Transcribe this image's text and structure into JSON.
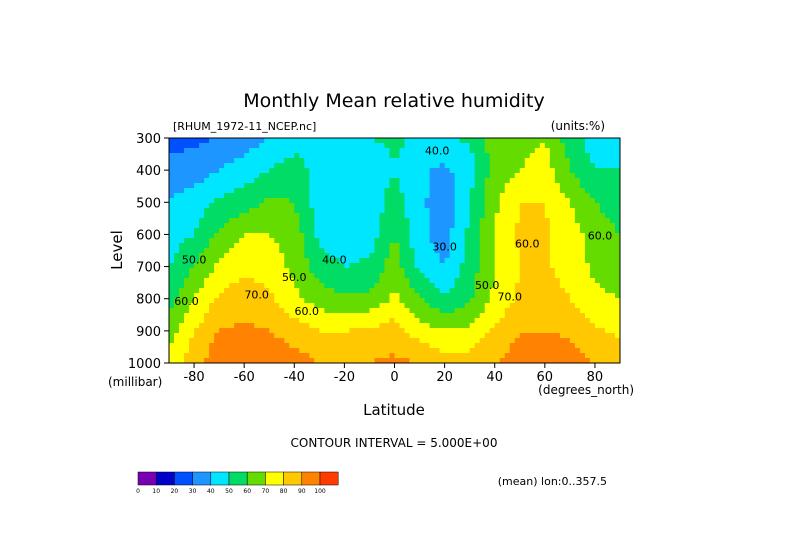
{
  "chart_data": {
    "type": "heatmap",
    "title": "Monthly Mean relative humidity",
    "file_label": "[RHUM_1972-11_NCEP.nc]",
    "units_label": "(units:%)",
    "ylabel": "Level",
    "ylabel_units": "(millibar)",
    "xlabel": "Latitude",
    "xlabel_units": "(degrees_north)",
    "x_ticks": [
      -80,
      -60,
      -40,
      -20,
      0,
      20,
      40,
      60,
      80
    ],
    "x_tick_labels": [
      "-80",
      "-60",
      "-40",
      "-20",
      "0",
      "20",
      "40",
      "60",
      "80"
    ],
    "xlim": [
      -90,
      90
    ],
    "y_ticks": [
      300,
      400,
      500,
      600,
      700,
      800,
      900,
      1000
    ],
    "y_tick_labels": [
      "300",
      "400",
      "500",
      "600",
      "700",
      "800",
      "900",
      "1000"
    ],
    "ylim": [
      1000,
      300
    ],
    "contour_interval": "CONTOUR INTERVAL = 5.000E+00",
    "footnote": "(mean) lon:0..357.5",
    "colorbar": {
      "levels": [
        0,
        10,
        20,
        30,
        40,
        50,
        60,
        70,
        80,
        90,
        100
      ],
      "labels": [
        "0",
        "10",
        "20",
        "30",
        "40",
        "50",
        "60",
        "70",
        "80",
        "90",
        "100"
      ],
      "colors": [
        "#7a00b4",
        "#0000c8",
        "#0050ff",
        "#1e96ff",
        "#00e6ff",
        "#00dc64",
        "#64dc00",
        "#ffff00",
        "#ffc800",
        "#ff8200",
        "#ff3c00",
        "#ff0000"
      ]
    },
    "contour_labels": [
      {
        "text": "40.0",
        "lat": 17,
        "level": 352
      },
      {
        "text": "50.0",
        "lat": -80,
        "level": 690
      },
      {
        "text": "40.0",
        "lat": -24,
        "level": 690
      },
      {
        "text": "50.0",
        "lat": -40,
        "level": 745
      },
      {
        "text": "60.0",
        "lat": -35,
        "level": 850
      },
      {
        "text": "70.0",
        "lat": -55,
        "level": 800
      },
      {
        "text": "30.0",
        "lat": 20,
        "level": 650
      },
      {
        "text": "50.0",
        "lat": 37,
        "level": 770
      },
      {
        "text": "70.0",
        "lat": 46,
        "level": 805
      },
      {
        "text": "60.0",
        "lat": 53,
        "level": 640
      },
      {
        "text": "60.0",
        "lat": 82,
        "level": 615
      },
      {
        "text": "60.0",
        "lat": -83,
        "level": 820
      }
    ],
    "levels_mb": [
      300,
      400,
      500,
      600,
      700,
      800,
      900,
      1000
    ],
    "lat_points": [
      -90,
      -80,
      -70,
      -60,
      -50,
      -40,
      -30,
      -20,
      -10,
      0,
      10,
      20,
      30,
      40,
      50,
      60,
      70,
      80,
      90
    ],
    "values": [
      [
        15,
        18,
        20,
        25,
        30,
        35,
        40,
        40,
        40,
        42,
        38,
        38,
        42,
        55,
        55,
        60,
        45,
        35,
        35
      ],
      [
        25,
        25,
        30,
        35,
        40,
        45,
        35,
        30,
        32,
        40,
        32,
        28,
        35,
        55,
        60,
        65,
        50,
        40,
        40
      ],
      [
        30,
        35,
        42,
        45,
        52,
        50,
        35,
        30,
        33,
        45,
        32,
        25,
        40,
        58,
        70,
        70,
        60,
        50,
        45
      ],
      [
        35,
        40,
        52,
        60,
        60,
        55,
        38,
        32,
        35,
        50,
        33,
        25,
        42,
        60,
        72,
        72,
        65,
        55,
        50
      ],
      [
        40,
        50,
        62,
        68,
        65,
        58,
        45,
        40,
        42,
        55,
        38,
        30,
        45,
        60,
        70,
        72,
        65,
        58,
        55
      ],
      [
        45,
        60,
        72,
        75,
        72,
        62,
        55,
        52,
        52,
        62,
        50,
        42,
        48,
        62,
        72,
        75,
        70,
        62,
        60
      ],
      [
        55,
        70,
        80,
        82,
        80,
        75,
        70,
        70,
        72,
        75,
        65,
        60,
        62,
        72,
        80,
        80,
        78,
        72,
        68
      ],
      [
        65,
        75,
        88,
        90,
        88,
        85,
        80,
        78,
        80,
        82,
        80,
        75,
        75,
        80,
        85,
        88,
        85,
        80,
        75
      ]
    ]
  }
}
